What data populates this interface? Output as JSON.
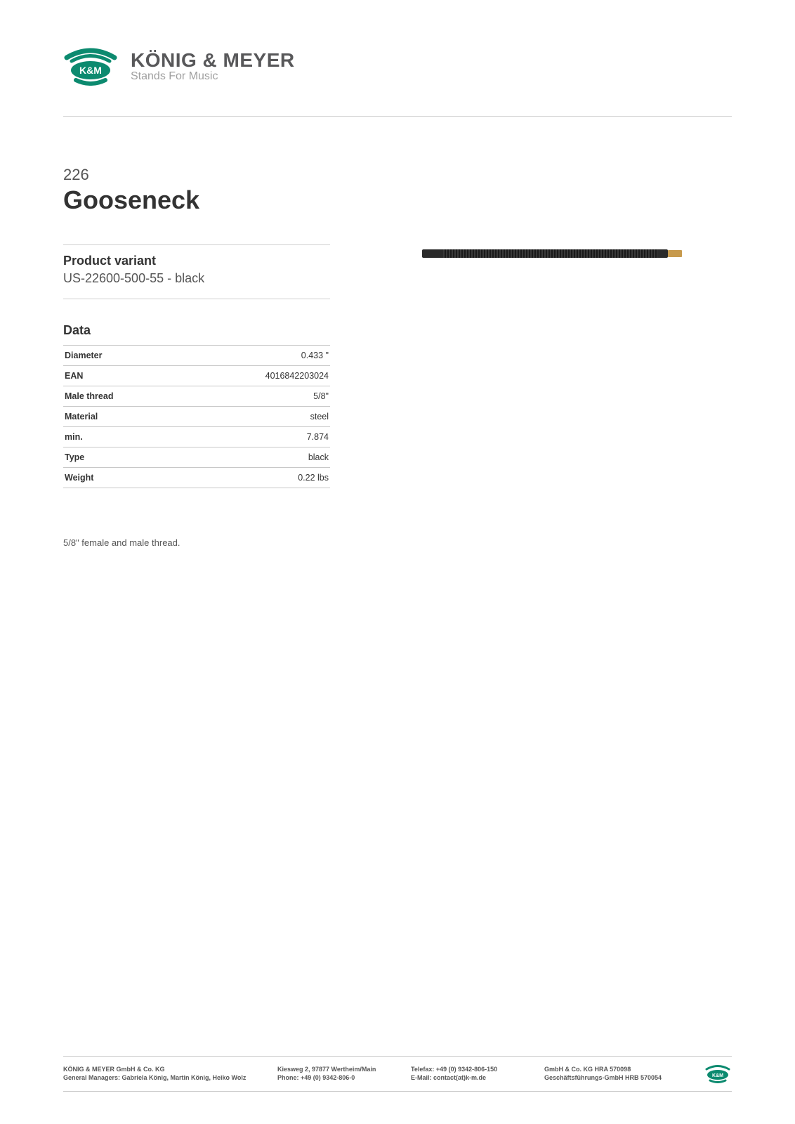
{
  "brand": {
    "short": "K&M",
    "name": "KÖNIG & MEYER",
    "tagline": "Stands For Music",
    "logo_color": "#0c8a6f",
    "logo_text_color": "#58585a"
  },
  "product": {
    "number": "226 ",
    "title": "Gooseneck",
    "variant_heading": "Product variant",
    "variant_value": "US-22600-500-55 - black",
    "data_heading": "Data",
    "spec_rows": [
      {
        "label": "Diameter",
        "value": "0.433 \""
      },
      {
        "label": "EAN",
        "value": "4016842203024"
      },
      {
        "label": "Male thread",
        "value": "5/8\""
      },
      {
        "label": "Material",
        "value": "steel"
      },
      {
        "label": "min.",
        "value": "7.874"
      },
      {
        "label": "Type",
        "value": "black"
      },
      {
        "label": "Weight",
        "value": "0.22 lbs"
      }
    ],
    "description": "5/8\" female and male thread.",
    "image": {
      "body_color": "#2a2a2a",
      "coil_color_a": "#3a3a3a",
      "coil_color_b": "#1a1a1a",
      "tip_color": "#c79a4d"
    }
  },
  "footer": {
    "company_line1": "KÖNIG & MEYER GmbH & Co. KG",
    "company_line2": "General Managers: Gabriela König, Martin König, Heiko Wolz",
    "address_line1": "Kiesweg 2, 97877 Wertheim/Main",
    "address_line2": "Phone:   +49 (0) 9342-806-0",
    "contact_line1": "Telefax: +49 (0) 9342-806-150",
    "contact_line2": "E-Mail: contact(at)k-m.de",
    "legal_line1": "GmbH & Co. KG HRA 570098",
    "legal_line2": "Geschäftsführungs-GmbH HRB 570054"
  },
  "styling": {
    "page_bg": "#ffffff",
    "text_color": "#333333",
    "muted_text": "#555555",
    "divider_color": "#d0d0d0",
    "table_border": "#c8c8c8"
  }
}
